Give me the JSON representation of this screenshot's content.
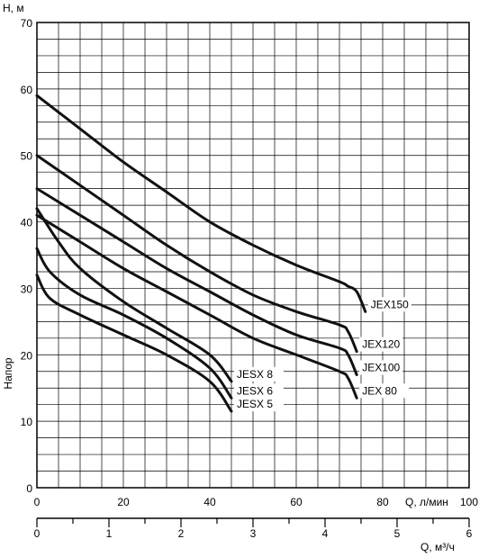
{
  "chart_data": {
    "type": "line",
    "ylabel_top": "H, м",
    "ylabel_side": "Напор",
    "xlabel_primary": "Q, л/мин",
    "xlabel_secondary": "Q, м³/ч",
    "ylim": [
      0,
      70
    ],
    "xlim": [
      0,
      100
    ],
    "x2lim": [
      0,
      6
    ],
    "y_ticks": [
      "0",
      "10",
      "20",
      "30",
      "40",
      "50",
      "60",
      "70"
    ],
    "x_ticks": [
      "0",
      "20",
      "40",
      "60",
      "80",
      "100"
    ],
    "x2_ticks": [
      "0",
      "1",
      "2",
      "3",
      "4",
      "5",
      "6"
    ],
    "grid": true,
    "series": [
      {
        "name": "JEX150",
        "x": [
          0,
          10,
          20,
          30,
          40,
          50,
          60,
          70,
          72,
          74,
          76
        ],
        "y": [
          59,
          54,
          49,
          44.5,
          40,
          36.5,
          33.5,
          31,
          30.3,
          29.5,
          26.5
        ]
      },
      {
        "name": "JEX120",
        "x": [
          0,
          10,
          20,
          30,
          40,
          50,
          60,
          70,
          72,
          74
        ],
        "y": [
          50,
          45.5,
          41,
          36.5,
          32.5,
          29,
          26.5,
          24.5,
          23.5,
          20.5
        ]
      },
      {
        "name": "JEX100",
        "x": [
          0,
          10,
          20,
          30,
          40,
          50,
          60,
          70,
          72,
          74
        ],
        "y": [
          45,
          41,
          37,
          33,
          29.5,
          26,
          23,
          21,
          20,
          17
        ]
      },
      {
        "name": "JEX 80",
        "x": [
          0,
          10,
          20,
          30,
          40,
          50,
          60,
          70,
          72,
          74
        ],
        "y": [
          41,
          37,
          33,
          29.5,
          26,
          22.5,
          20,
          17.5,
          16.5,
          13.5
        ]
      },
      {
        "name": "JESX 8",
        "x": [
          0,
          5,
          10,
          20,
          30,
          40,
          45
        ],
        "y": [
          42,
          37,
          33,
          28,
          24,
          20,
          16
        ]
      },
      {
        "name": "JESX 6",
        "x": [
          0,
          3,
          10,
          20,
          30,
          40,
          45
        ],
        "y": [
          36,
          32.5,
          29,
          26,
          22.5,
          18,
          13.5
        ]
      },
      {
        "name": "JESX 5",
        "x": [
          0,
          3,
          10,
          20,
          30,
          40,
          45
        ],
        "y": [
          32,
          28.5,
          26,
          23,
          20,
          16,
          11.5
        ]
      }
    ],
    "labels": [
      {
        "series": "JEX150",
        "text": "JEX150",
        "side": "right"
      },
      {
        "series": "JEX120",
        "text": "JEX120",
        "side": "right"
      },
      {
        "series": "JEX100",
        "text": "JEX100",
        "side": "right"
      },
      {
        "series": "JEX 80",
        "text": "JEX  80",
        "side": "right"
      },
      {
        "series": "JESX 8",
        "text": "JESX  8",
        "side": "right"
      },
      {
        "series": "JESX 6",
        "text": "JESX  6",
        "side": "right"
      },
      {
        "series": "JESX 5",
        "text": "JESX  5",
        "side": "right"
      }
    ]
  }
}
